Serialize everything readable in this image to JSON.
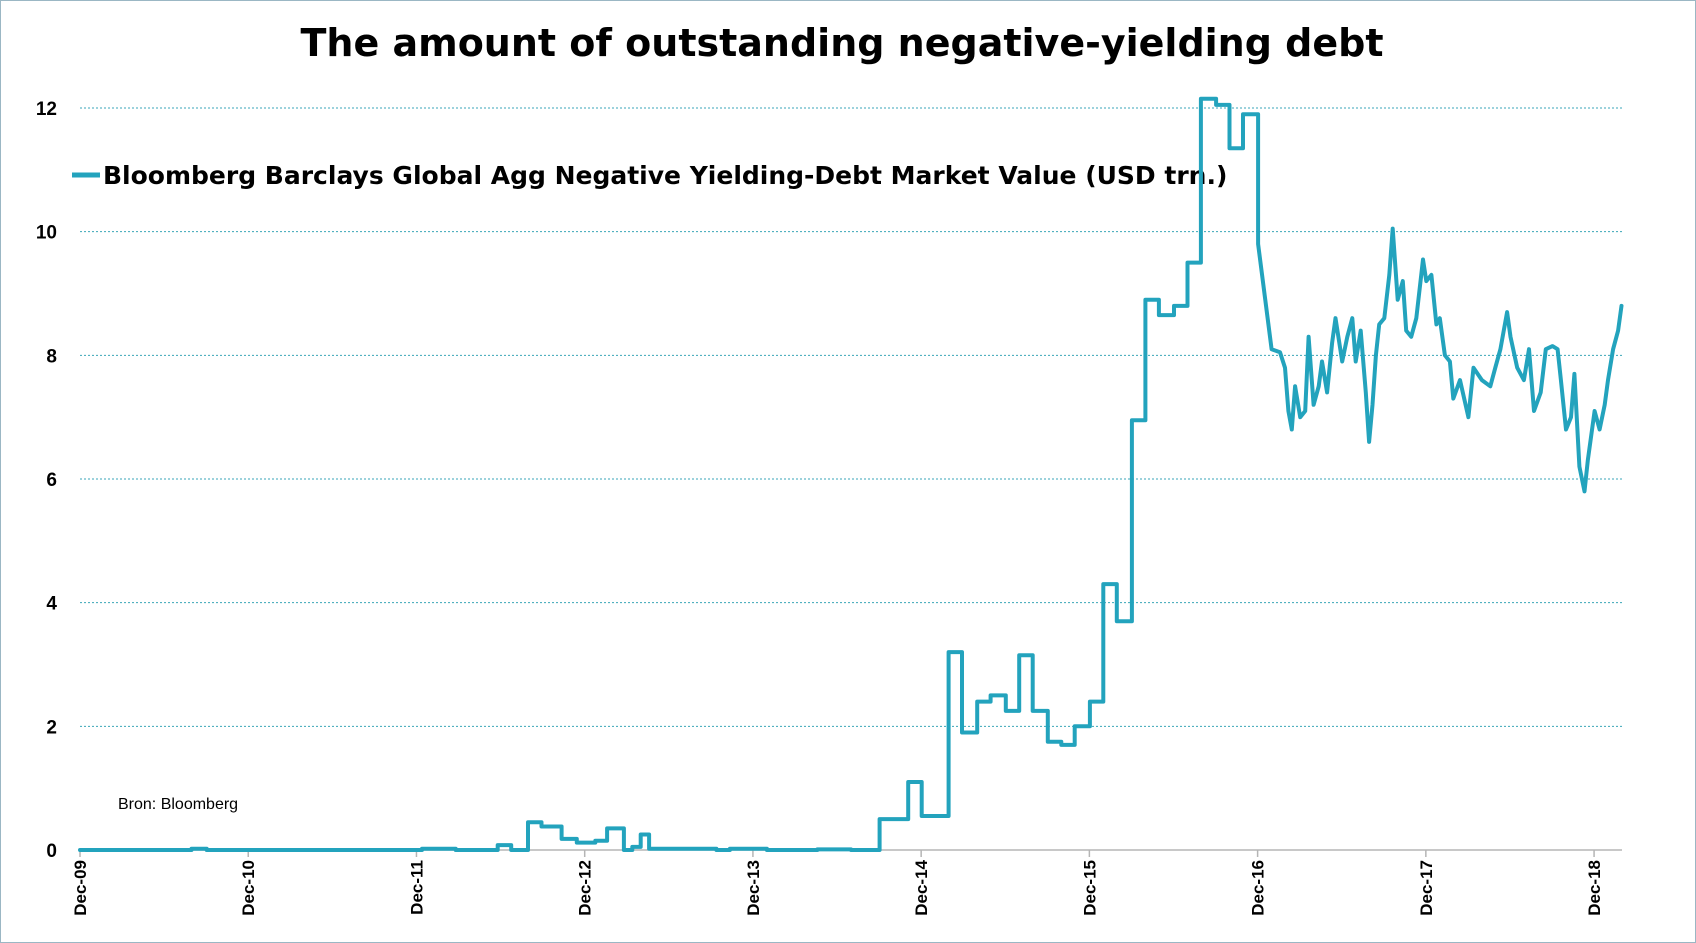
{
  "chart_data": {
    "type": "line",
    "title": "The amount of outstanding negative-yielding debt",
    "xlabel": "",
    "ylabel": "",
    "ylim": [
      0,
      12
    ],
    "yticks": [
      0,
      2,
      4,
      6,
      8,
      10,
      12
    ],
    "xlim": [
      2009.917,
      2019.083
    ],
    "xticks": [
      {
        "label": "Dec-09",
        "x": 2009.917
      },
      {
        "label": "Dec-10",
        "x": 2010.917
      },
      {
        "label": "Dec-11",
        "x": 2011.917
      },
      {
        "label": "Dec-12",
        "x": 2012.917
      },
      {
        "label": "Dec-13",
        "x": 2013.917
      },
      {
        "label": "Dec-14",
        "x": 2014.917
      },
      {
        "label": "Dec-15",
        "x": 2015.917
      },
      {
        "label": "Dec-16",
        "x": 2016.917
      },
      {
        "label": "Dec-17",
        "x": 2017.917
      },
      {
        "label": "Dec-18",
        "x": 2018.917
      }
    ],
    "grid": "horizontal-dotted",
    "legend_position": "top-left",
    "annotation": "Bron: Bloomberg",
    "color": "#23a3bd",
    "series": [
      {
        "name": "Bloomberg Barclays Global Agg Negative Yielding-Debt Market Value (USD trn.)",
        "x": [
          2009.917,
          2010.5,
          2010.58,
          2010.67,
          2011.87,
          2011.95,
          2012.15,
          2012.33,
          2012.4,
          2012.48,
          2012.5,
          2012.58,
          2012.6,
          2012.66,
          2012.68,
          2012.78,
          2012.8,
          2012.87,
          2012.9,
          2012.98,
          2013.05,
          2013.08,
          2013.15,
          2013.2,
          2013.25,
          2013.3,
          2013.7,
          2013.78,
          2014.0,
          2014.08,
          2014.22,
          2014.3,
          2014.5,
          2014.58,
          2014.67,
          2014.84,
          2014.92,
          2015.0,
          2015.08,
          2015.16,
          2015.25,
          2015.33,
          2015.42,
          2015.5,
          2015.58,
          2015.67,
          2015.75,
          2015.83,
          2015.92,
          2016.0,
          2016.08,
          2016.17,
          2016.25,
          2016.33,
          2016.42,
          2016.5,
          2016.58,
          2016.67,
          2016.75,
          2016.83,
          2016.92,
          2017.0,
          2017.05,
          2017.08,
          2017.1,
          2017.12,
          2017.14,
          2017.17,
          2017.2,
          2017.22,
          2017.25,
          2017.28,
          2017.3,
          2017.33,
          2017.36,
          2017.38,
          2017.42,
          2017.45,
          2017.48,
          2017.5,
          2017.53,
          2017.56,
          2017.58,
          2017.6,
          2017.62,
          2017.64,
          2017.67,
          2017.7,
          2017.72,
          2017.75,
          2017.78,
          2017.8,
          2017.83,
          2017.86,
          2017.9,
          2017.92,
          2017.95,
          2017.98,
          2018.0,
          2018.03,
          2018.06,
          2018.08,
          2018.12,
          2018.17,
          2018.2,
          2018.25,
          2018.3,
          2018.33,
          2018.36,
          2018.4,
          2018.42,
          2018.46,
          2018.5,
          2018.53,
          2018.56,
          2018.6,
          2018.63,
          2018.67,
          2018.7,
          2018.72,
          2018.75,
          2018.78,
          2018.8,
          2018.83,
          2018.86,
          2018.88,
          2018.92,
          2018.95,
          2018.98,
          2019.0,
          2019.03,
          2019.06,
          2019.08
        ],
        "values": [
          0.0,
          0.0,
          0.02,
          0.0,
          0.0,
          0.02,
          0.0,
          0.0,
          0.08,
          0.0,
          0.0,
          0.45,
          0.45,
          0.38,
          0.38,
          0.18,
          0.18,
          0.12,
          0.12,
          0.15,
          0.35,
          0.35,
          0.0,
          0.05,
          0.25,
          0.02,
          0.0,
          0.02,
          0.0,
          0.0,
          0.0,
          0.01,
          0.0,
          0.0,
          0.5,
          1.1,
          0.55,
          0.55,
          3.2,
          1.9,
          2.4,
          2.5,
          2.25,
          3.15,
          2.25,
          1.75,
          1.7,
          2.0,
          2.4,
          4.3,
          3.7,
          6.95,
          8.9,
          8.65,
          8.8,
          9.5,
          12.15,
          12.05,
          11.35,
          11.9,
          9.8,
          8.1,
          8.05,
          7.8,
          7.1,
          6.8,
          7.5,
          7.0,
          7.1,
          8.3,
          7.2,
          7.5,
          7.9,
          7.4,
          8.2,
          8.6,
          7.9,
          8.3,
          8.6,
          7.9,
          8.4,
          7.4,
          6.6,
          7.2,
          8.0,
          8.5,
          8.6,
          9.3,
          10.05,
          8.9,
          9.2,
          8.4,
          8.3,
          8.6,
          9.55,
          9.2,
          9.3,
          8.5,
          8.6,
          8.0,
          7.9,
          7.3,
          7.6,
          7.0,
          7.8,
          7.6,
          7.5,
          7.8,
          8.1,
          8.7,
          8.3,
          7.8,
          7.6,
          8.1,
          7.1,
          7.4,
          8.1,
          8.15,
          8.1,
          7.6,
          6.8,
          7.0,
          7.7,
          6.2,
          5.8,
          6.3,
          7.1,
          6.8,
          7.2,
          7.6,
          8.1,
          8.4,
          8.8
        ]
      }
    ]
  }
}
